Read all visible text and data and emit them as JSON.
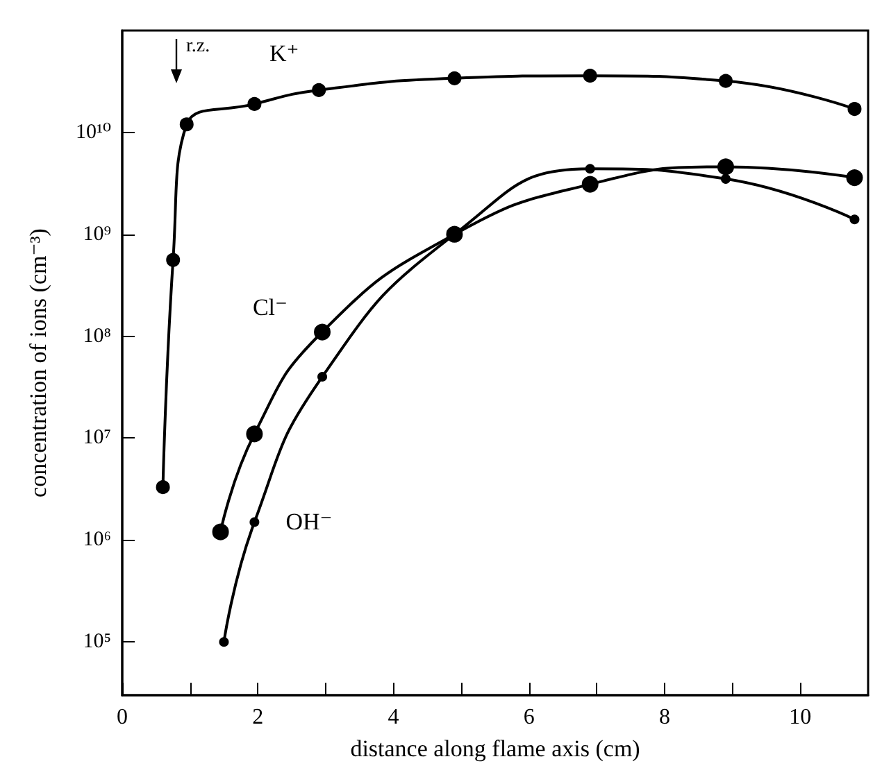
{
  "chart_data": {
    "type": "line",
    "xlabel": "distance along flame axis (cm)",
    "ylabel": "concentration of ions (cm⁻³)",
    "log": true,
    "marker": "circle",
    "line_style": "solid",
    "grid": false,
    "legend": false,
    "xlim": [
      0,
      11
    ],
    "xticks": [
      0,
      {
        "value": 1,
        "label": null
      },
      2,
      {
        "value": 3,
        "label": null
      },
      4,
      {
        "value": 5,
        "label": null
      },
      6,
      {
        "value": 7,
        "label": null
      },
      8,
      {
        "value": 9,
        "label": null
      },
      10
    ],
    "ylim": [
      30000,
      100000000000
    ],
    "yticks": [
      {
        "value": 100000,
        "label": "10⁵"
      },
      {
        "value": 1000000,
        "label": "10⁶"
      },
      {
        "value": 10000000,
        "label": "10⁷"
      },
      {
        "value": 100000000,
        "label": "10⁸"
      },
      {
        "value": 1000000000,
        "label": "10⁹"
      },
      {
        "value": 10000000000,
        "label": "10¹⁰"
      }
    ],
    "annotations": [
      "r.z."
    ],
    "series": [
      {
        "name": "K⁺",
        "color": "#000000",
        "x": [
          0.6,
          0.75,
          0.95,
          1.95,
          2.9,
          4.9,
          6.9,
          8.9,
          10.8
        ],
        "values": [
          3300000,
          560000000,
          12000000000,
          19000000000,
          26000000000,
          34000000000,
          36000000000,
          32000000000,
          17000000000
        ]
      },
      {
        "name": "Cl⁻",
        "color": "#000000",
        "x": [
          1.45,
          1.95,
          2.95,
          4.9,
          6.9,
          8.9,
          10.8
        ],
        "values": [
          1200000,
          11000000,
          110000000,
          1000000000,
          3100000000,
          4600000000,
          3600000000
        ]
      },
      {
        "name": "OH⁻",
        "color": "#000000",
        "x": [
          1.5,
          1.95,
          2.95,
          4.9,
          6.9,
          8.9,
          10.8
        ],
        "values": [
          100000,
          1500000,
          40000000,
          1000000000,
          4400000000,
          3500000000,
          1400000000
        ]
      }
    ]
  }
}
